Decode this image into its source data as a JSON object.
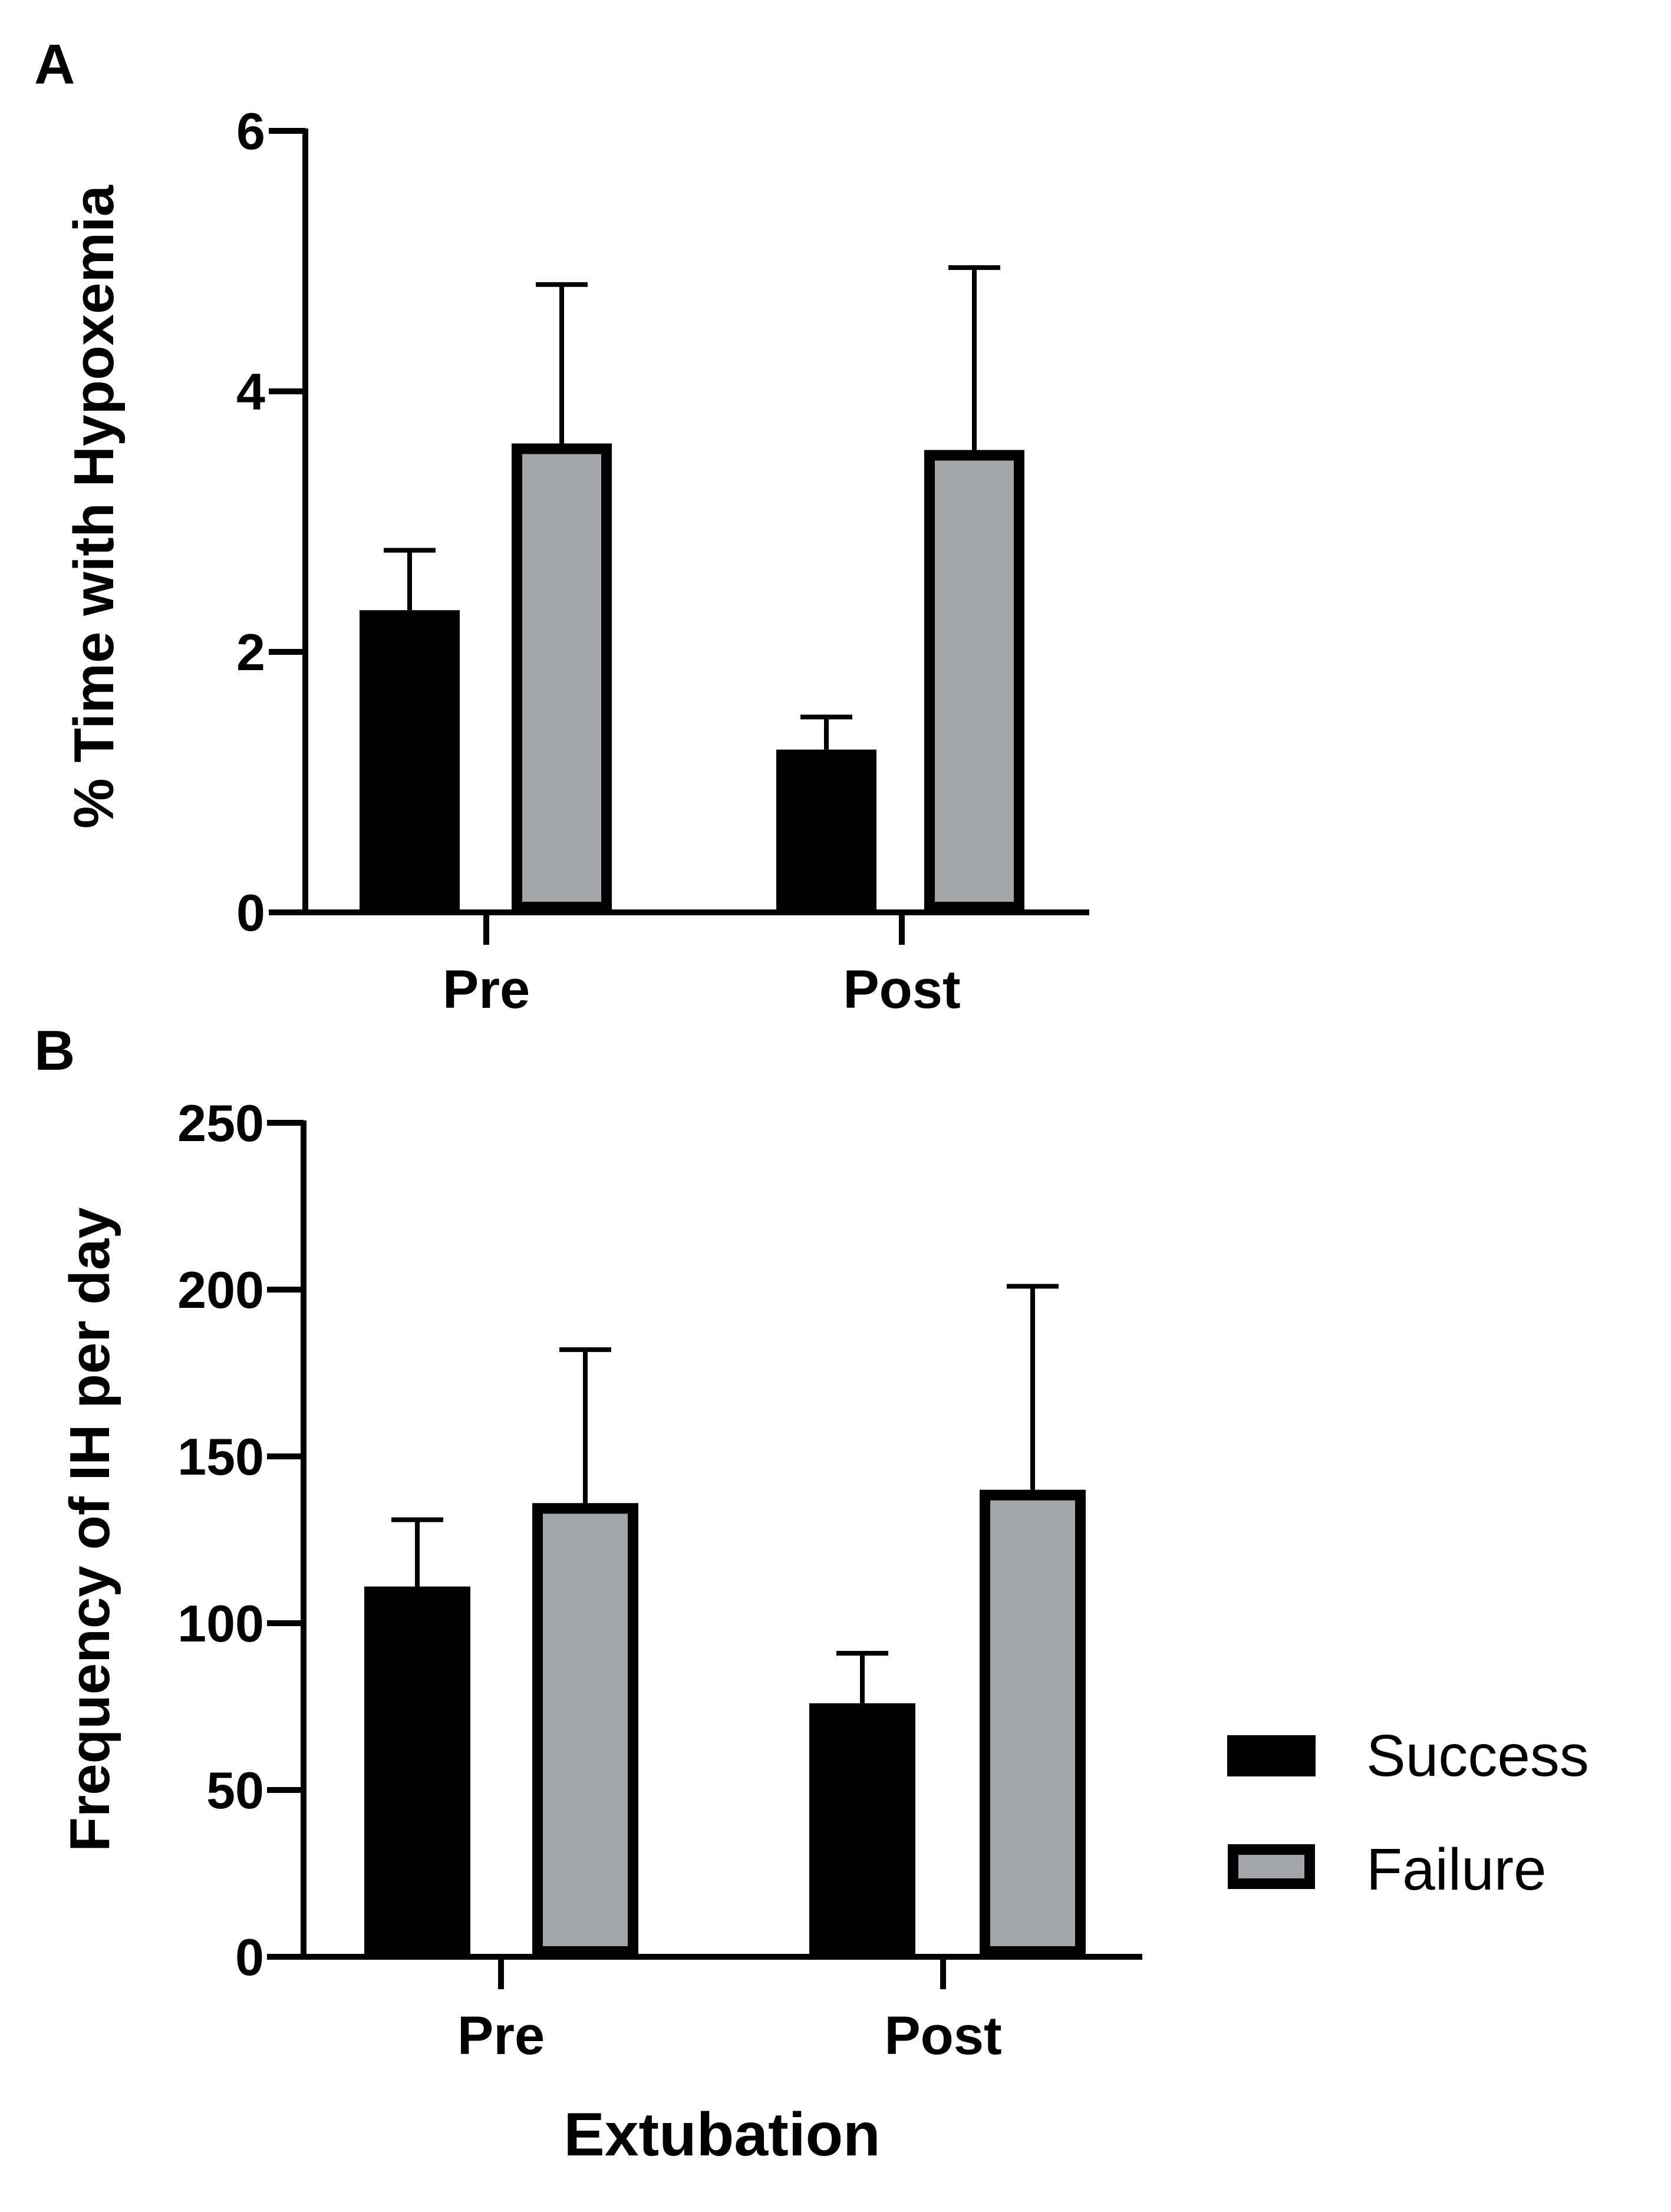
{
  "chart_data": [
    {
      "panel": "A",
      "type": "bar",
      "title": "",
      "xlabel": "",
      "ylabel": "% Time with  Hypoxemia",
      "categories": [
        "Pre",
        "Post"
      ],
      "ylim": [
        0,
        6
      ],
      "yticks": [
        0,
        2,
        4,
        6
      ],
      "yticklabels": [
        "0",
        "2",
        "4",
        "6"
      ],
      "series": [
        {
          "name": "Success",
          "values": [
            2.32,
            1.25
          ],
          "error": [
            0.46,
            0.25
          ]
        },
        {
          "name": "Failure",
          "values": [
            3.6,
            3.55
          ],
          "error": [
            1.22,
            1.4
          ]
        }
      ]
    },
    {
      "panel": "B",
      "type": "bar",
      "title": "",
      "xlabel": "Extubation",
      "ylabel": "Frequency of IH per day",
      "categories": [
        "Pre",
        "Post"
      ],
      "ylim": [
        0,
        250
      ],
      "yticks": [
        0,
        50,
        100,
        150,
        200,
        250
      ],
      "yticklabels": [
        "0",
        "50",
        "100",
        "150",
        "200",
        "250"
      ],
      "series": [
        {
          "name": "Success",
          "values": [
            111,
            76
          ],
          "error": [
            20,
            15
          ]
        },
        {
          "name": "Failure",
          "values": [
            136,
            140
          ],
          "error": [
            46,
            61
          ]
        }
      ]
    }
  ],
  "legend": {
    "items": [
      {
        "name": "Success",
        "color": "#000000"
      },
      {
        "name": "Failure",
        "color": "#a4a5a8"
      }
    ],
    "placement": "right"
  },
  "colors": {
    "success_fill": "#000000",
    "failure_fill": "#a4a5a8",
    "failure_border": "#000000",
    "axis": "#000000"
  }
}
